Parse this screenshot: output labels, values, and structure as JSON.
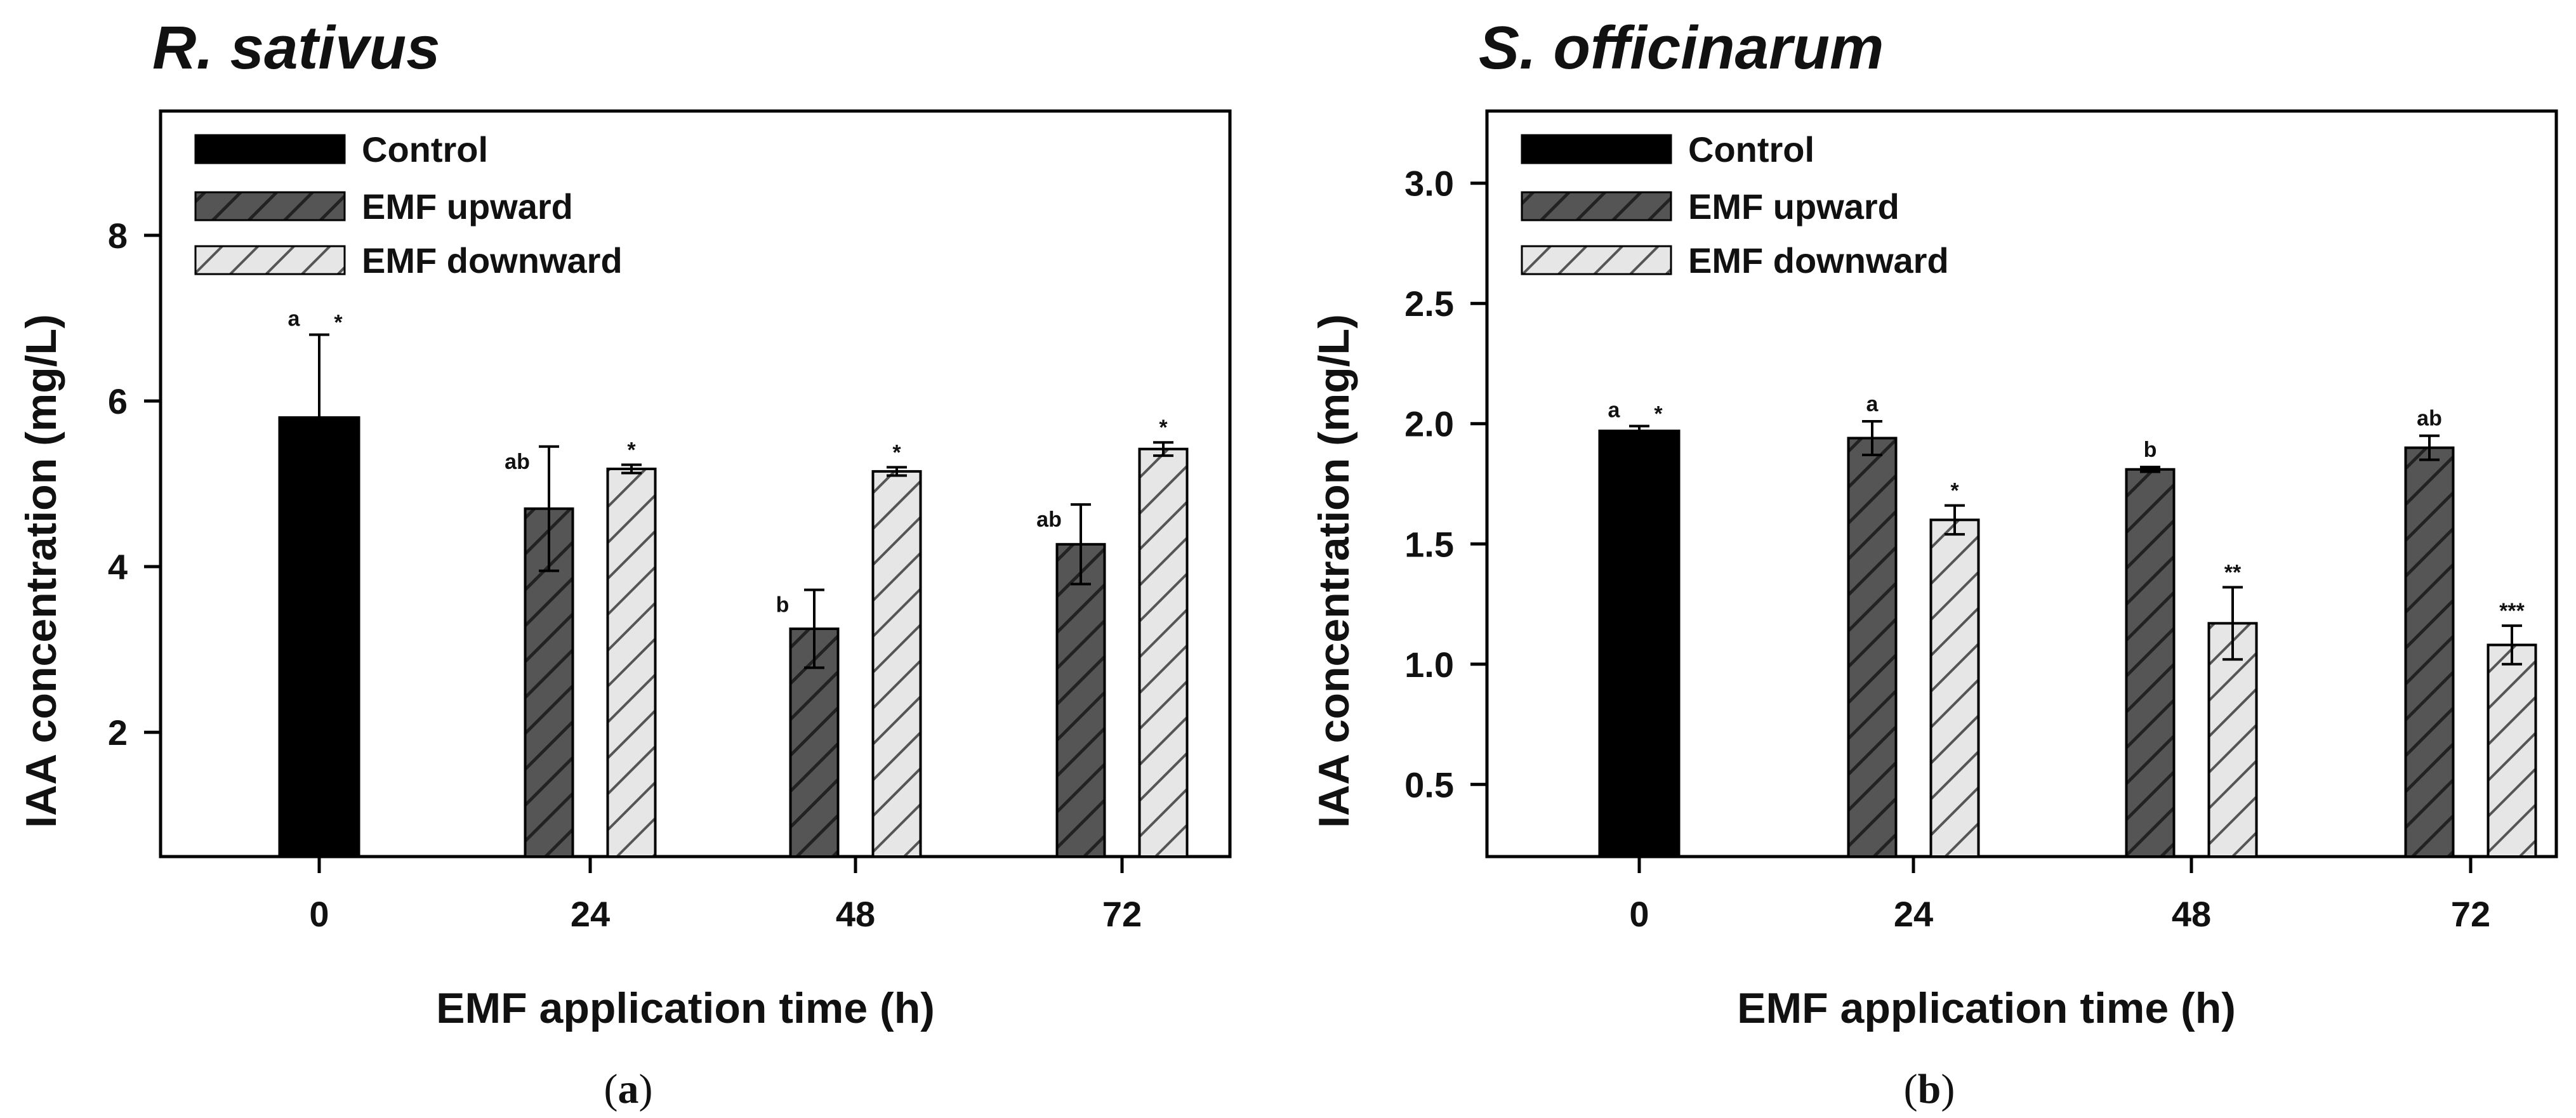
{
  "legend": [
    "Control",
    "EMF upward",
    "EMF downward"
  ],
  "colors": {
    "control": "#000000",
    "upward": "#555555",
    "upward_hatch": "#222222",
    "downward": "#e6e6e6",
    "downward_hatch": "#555555"
  },
  "chart_data": [
    {
      "type": "bar",
      "title": "R. sativus",
      "caption": "a",
      "xlabel": "EMF application time (h)",
      "ylabel": "IAA concentration (mg/L)",
      "ylim": [
        0.5,
        9.5
      ],
      "yticks": [
        2,
        4,
        6,
        8
      ],
      "ytick_labels": [
        "2",
        "4",
        "6",
        "8"
      ],
      "categories": [
        "0",
        "24",
        "48",
        "72"
      ],
      "series": [
        {
          "name": "Control",
          "values": [
            5.8,
            null,
            null,
            null
          ],
          "errors": [
            1.0,
            null,
            null,
            null
          ],
          "letters": [
            "a",
            "",
            "",
            ""
          ],
          "stars": [
            "*",
            "",
            "",
            ""
          ]
        },
        {
          "name": "EMF upward",
          "values": [
            null,
            4.7,
            3.25,
            4.27
          ],
          "errors": [
            null,
            0.75,
            0.47,
            0.48
          ],
          "letters": [
            "",
            "ab",
            "b",
            "ab"
          ],
          "stars": [
            "",
            "",
            "",
            ""
          ]
        },
        {
          "name": "EMF downward",
          "values": [
            null,
            5.18,
            5.15,
            5.42
          ],
          "errors": [
            null,
            0.05,
            0.05,
            0.08
          ],
          "letters": [
            "",
            "",
            "",
            ""
          ],
          "stars": [
            "",
            "*",
            "*",
            "*"
          ]
        }
      ]
    },
    {
      "type": "bar",
      "title": "S. officinarum",
      "caption": "b",
      "xlabel": "EMF application time (h)",
      "ylabel": "IAA concentration (mg/L)",
      "ylim": [
        0.2,
        3.3
      ],
      "yticks": [
        0.5,
        1.0,
        1.5,
        2.0,
        2.5,
        3.0
      ],
      "ytick_labels": [
        "0.5",
        "1.0",
        "1.5",
        "2.0",
        "2.5",
        "3.0"
      ],
      "categories": [
        "0",
        "24",
        "48",
        "72"
      ],
      "series": [
        {
          "name": "Control",
          "values": [
            1.97,
            null,
            null,
            null
          ],
          "errors": [
            0.02,
            null,
            null,
            null
          ],
          "letters": [
            "a",
            "",
            "",
            ""
          ],
          "stars": [
            "*",
            "",
            "",
            ""
          ]
        },
        {
          "name": "EMF upward",
          "values": [
            null,
            1.94,
            1.81,
            1.9
          ],
          "errors": [
            null,
            0.07,
            0.01,
            0.05
          ],
          "letters": [
            "",
            "a",
            "b",
            "ab"
          ],
          "stars": [
            "",
            "",
            "",
            ""
          ]
        },
        {
          "name": "EMF downward",
          "values": [
            null,
            1.6,
            1.17,
            1.08
          ],
          "errors": [
            null,
            0.06,
            0.15,
            0.08
          ],
          "letters": [
            "",
            "",
            "",
            ""
          ],
          "stars": [
            "",
            "*",
            "**",
            "***"
          ]
        }
      ]
    }
  ]
}
